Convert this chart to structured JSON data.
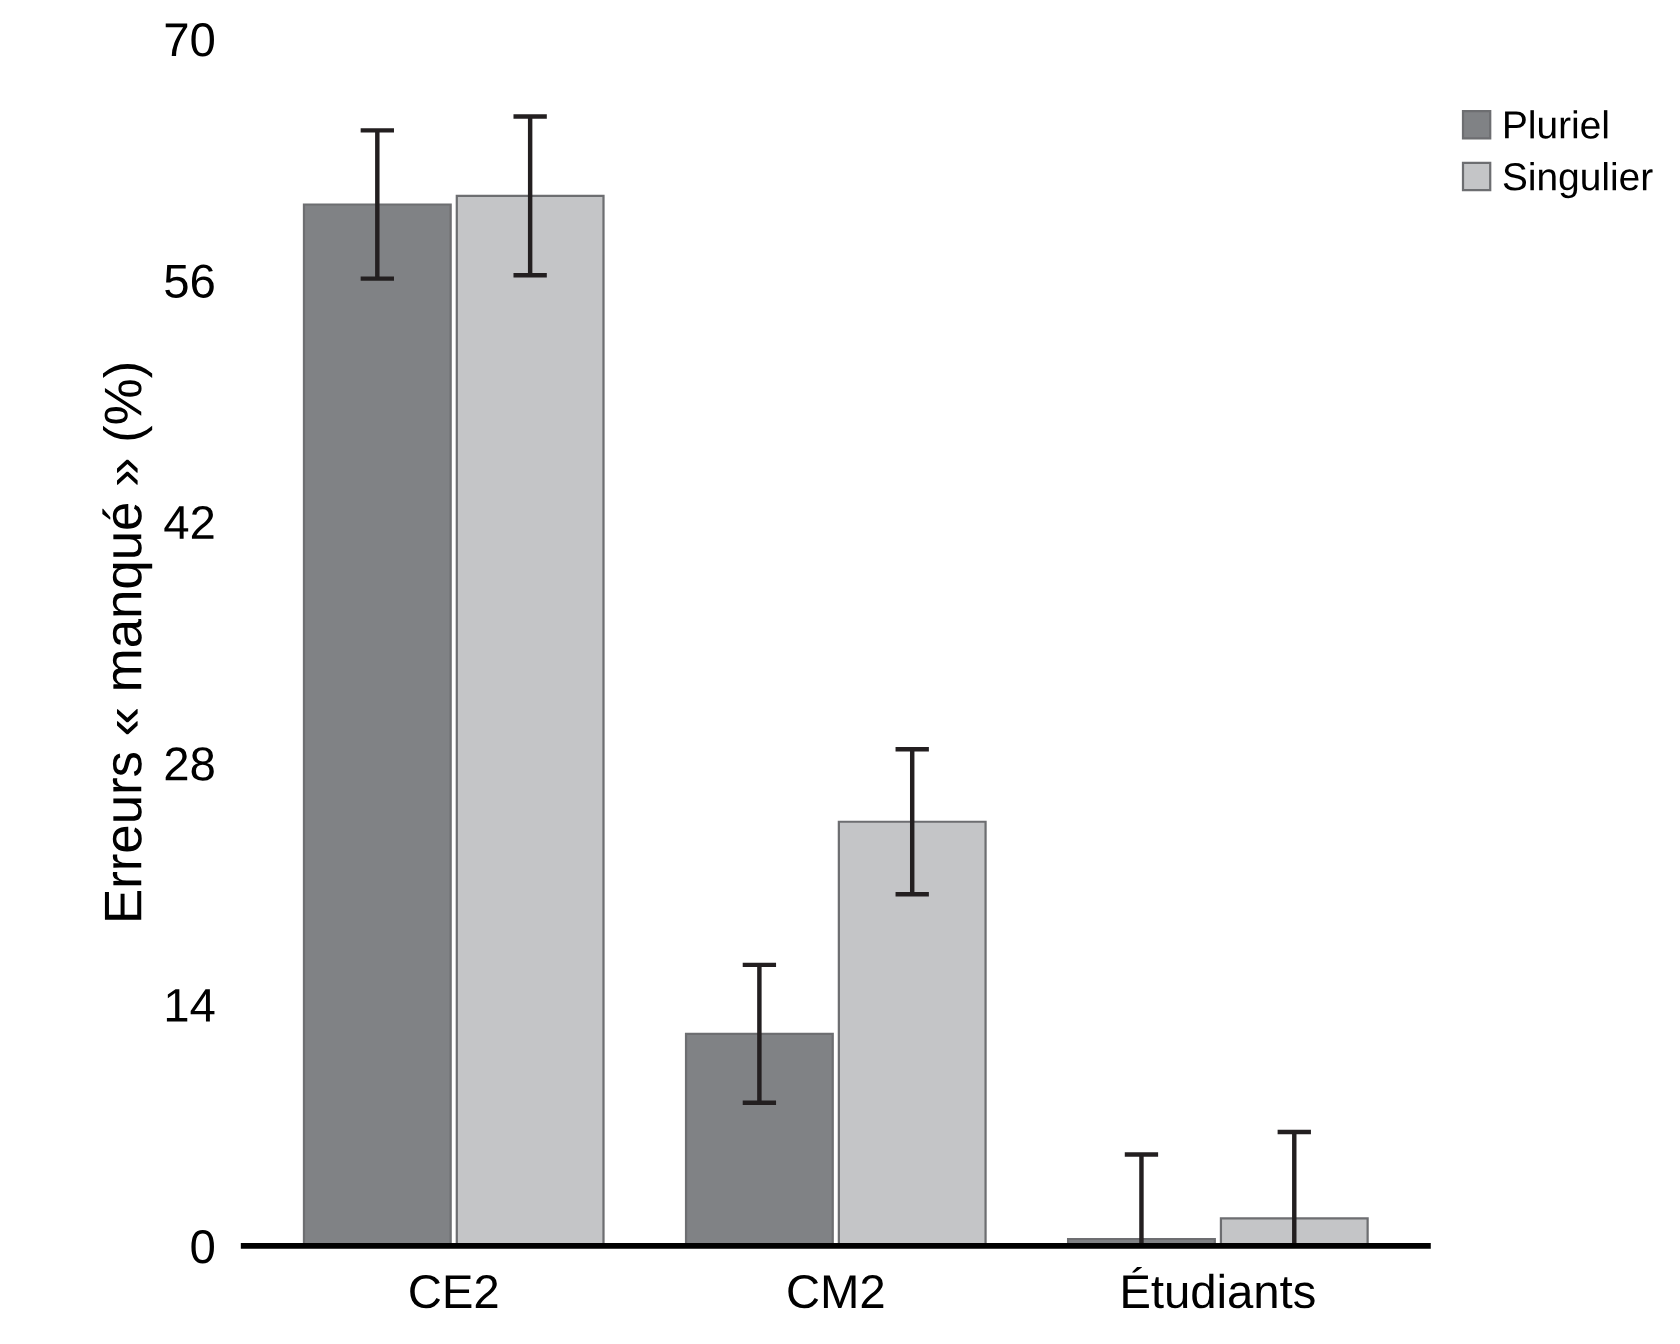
{
  "chart_data": {
    "type": "bar",
    "ylabel": "Erreurs « manqué » (%)",
    "categories": [
      "CE2",
      "CM2",
      "Étudiants"
    ],
    "series": [
      {
        "name": "Pluriel",
        "color": "#808285",
        "values": [
          60.4,
          12.3,
          0.4
        ],
        "errors": [
          4.3,
          4.0,
          [
            0,
            5.3
          ]
        ]
      },
      {
        "name": "Singulier",
        "color": "#c4c5c7",
        "values": [
          60.9,
          24.6,
          1.6
        ],
        "errors": [
          4.6,
          4.2,
          [
            0,
            6.6
          ]
        ]
      }
    ],
    "ylim": [
      0,
      70
    ],
    "yticks": [
      0,
      14,
      28,
      42,
      56,
      70
    ],
    "grid": false,
    "legend": "top right"
  }
}
